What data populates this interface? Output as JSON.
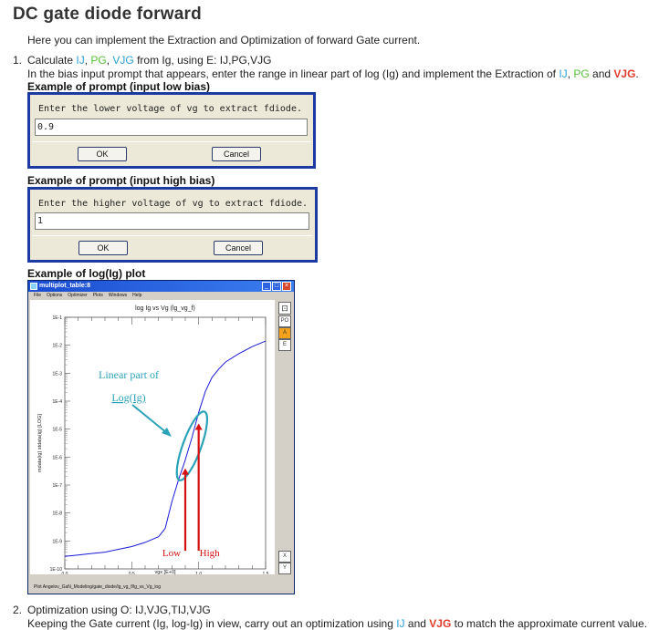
{
  "title": "DC gate diode forward",
  "intro": "Here you can implement the Extraction and Optimization of forward Gate current.",
  "step1": {
    "num": "1.",
    "l1_a": "Calculate ",
    "l1_ij": "IJ",
    "l1_c1": ", ",
    "l1_pg": "PG",
    "l1_c2": ", ",
    "l1_vjg": "VJG",
    "l1_b": " from Ig, using E: IJ,PG,VJG",
    "l2_a": "In the bias input prompt that appears, enter the range in linear part of log (Ig) and implement the Extraction of ",
    "l2_ij": "IJ",
    "l2_c1": ", ",
    "l2_pg": "PG",
    "l2_and": " and ",
    "l2_vjg": "VJG",
    "l2_dot": "."
  },
  "example_low_label": "Example of prompt (input low bias)",
  "dialog_low": {
    "prompt": "Enter the lower voltage of vg to extract fdiode.",
    "value": "0.9",
    "ok": "OK",
    "cancel": "Cancel"
  },
  "example_high_label": "Example of prompt (input high bias)",
  "dialog_high": {
    "prompt": "Enter the higher voltage of vg to extract fdiode.",
    "value": "1",
    "ok": "OK",
    "cancel": "Cancel"
  },
  "example_plot_label": "Example of log(Ig) plot",
  "plot_window": {
    "title": "multiplot_table:8",
    "menu": [
      "File",
      "Options",
      "Optimizer",
      "Plots",
      "Windows",
      "Help"
    ],
    "side_buttons": [
      "PO",
      "A",
      "E"
    ],
    "bottom_buttons": [
      "X",
      "Y"
    ],
    "footer": "Plot Angelov_GaN_Modeling/gate_diode/lg_vg_f/lg_vs_Vg_log"
  },
  "chart_data": {
    "type": "line",
    "title": "log Ig vs Vg (lg_vg_f)",
    "xlabel": "vgx [E+0]",
    "ylabel": "mdata(ig) stdata(ig) [LOG]",
    "xlim": [
      0.0,
      1.5
    ],
    "ylim_exp": [
      -10,
      -1
    ],
    "x_ticks": [
      "0.0",
      "0.5",
      "1.0",
      "1.5"
    ],
    "y_ticks": [
      "1E-1",
      "1E-2",
      "1E-3",
      "1E-4",
      "1E-5",
      "1E-6",
      "1E-7",
      "1E-8",
      "1E-9",
      "1E-10"
    ],
    "series": [
      {
        "color": "#1a1ad6",
        "x": [
          0.0,
          0.1,
          0.2,
          0.3,
          0.4,
          0.5,
          0.6,
          0.7,
          0.75,
          0.8,
          0.85,
          0.9,
          0.95,
          1.0,
          1.05,
          1.1,
          1.15,
          1.2,
          1.3,
          1.4,
          1.5
        ],
        "log10_y": [
          -9.55,
          -9.5,
          -9.45,
          -9.4,
          -9.3,
          -9.2,
          -9.05,
          -8.85,
          -8.55,
          -7.6,
          -6.8,
          -6.1,
          -5.3,
          -4.4,
          -3.65,
          -3.15,
          -2.85,
          -2.6,
          -2.3,
          -2.05,
          -1.85
        ]
      }
    ],
    "annotations": {
      "linear_part_line1": "Linear part of",
      "linear_part_line2": "Log(Ig)",
      "low": "Low",
      "high": "High",
      "low_x": 0.9,
      "high_x": 1.0,
      "low_top_log10": -6.4,
      "high_top_log10": -4.8,
      "annotation_color": "#2aa3b8",
      "arrow_color": "#d41010"
    }
  },
  "step2": {
    "num": "2.",
    "l1": "Optimization using O: IJ,VJG,TIJ,VJG",
    "l2_a": "Keeping the Gate current (Ig, log-Ig) in view, carry out an optimization using ",
    "l2_ij": "IJ",
    "l2_and": " and ",
    "l2_vjg": "VJG",
    "l2_b": " to match the approximate current value."
  }
}
